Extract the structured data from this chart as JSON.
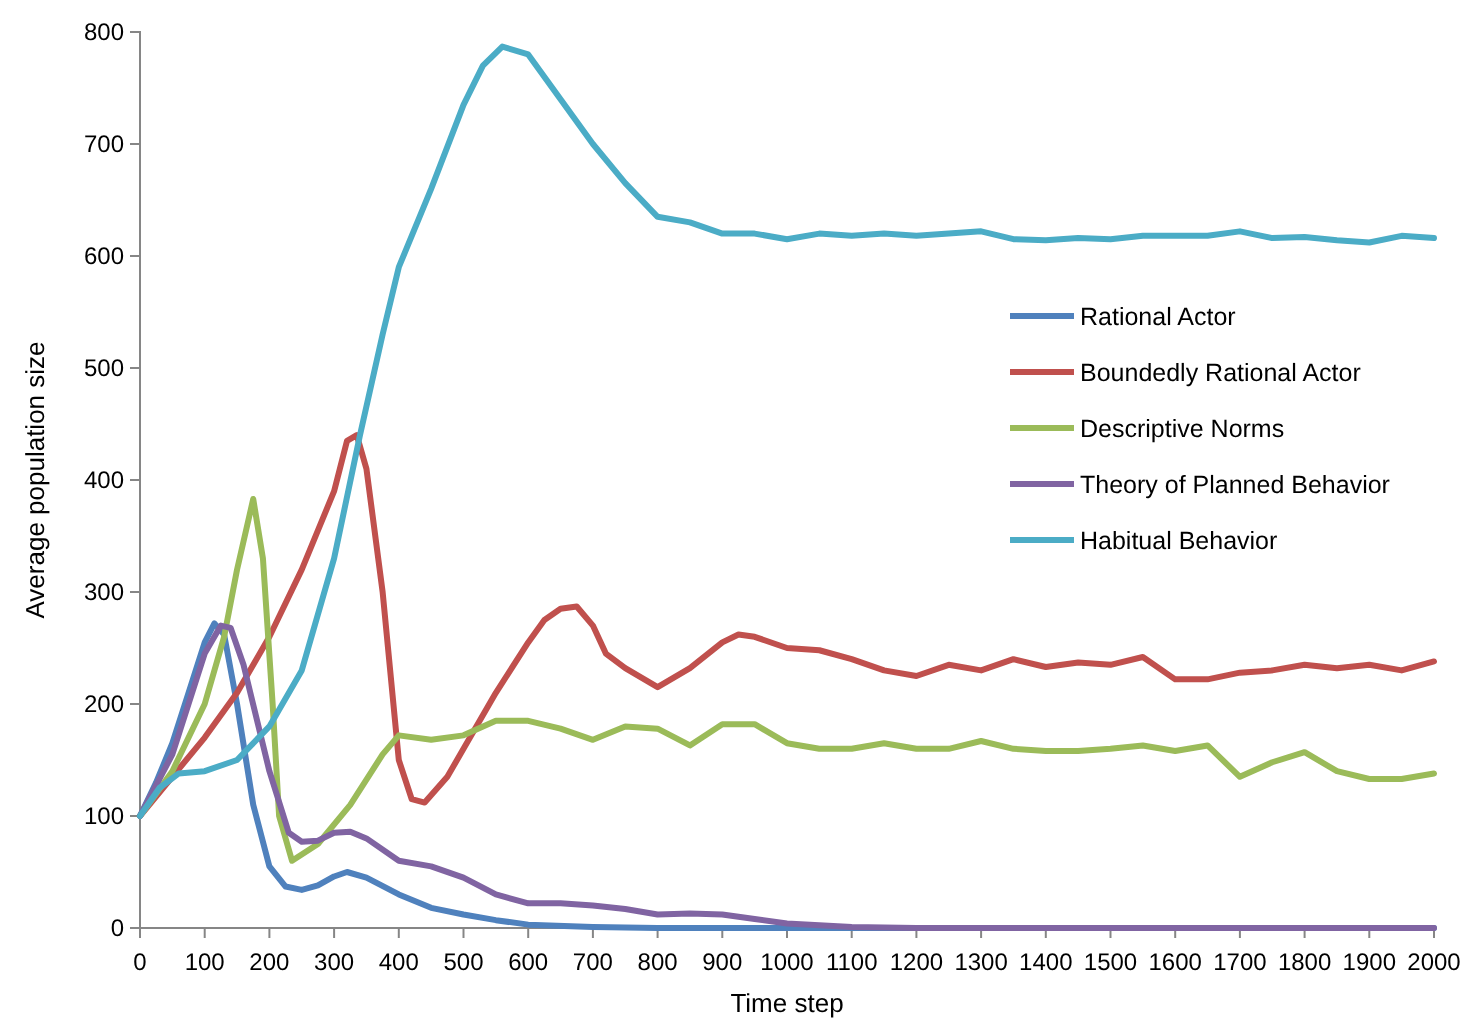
{
  "chart_data": {
    "type": "line",
    "xlabel": "Time step",
    "ylabel": "Average population size",
    "xlim": [
      0,
      2000
    ],
    "ylim": [
      0,
      800
    ],
    "xticks": [
      0,
      100,
      200,
      300,
      400,
      500,
      600,
      700,
      800,
      900,
      1000,
      1100,
      1200,
      1300,
      1400,
      1500,
      1600,
      1700,
      1800,
      1900,
      2000
    ],
    "yticks": [
      0,
      100,
      200,
      300,
      400,
      500,
      600,
      700,
      800
    ],
    "grid": false,
    "legend": "right",
    "marker": "none",
    "line_style": "solid",
    "series": [
      {
        "name": "Rational Actor",
        "color": "#4f81bd",
        "x": [
          0,
          25,
          50,
          75,
          100,
          115,
          130,
          150,
          175,
          200,
          225,
          250,
          275,
          300,
          320,
          350,
          400,
          450,
          500,
          550,
          600,
          700,
          800,
          2000
        ],
        "values": [
          100,
          130,
          165,
          210,
          255,
          272,
          262,
          200,
          110,
          55,
          37,
          34,
          38,
          46,
          50,
          45,
          30,
          18,
          12,
          7,
          3,
          1,
          0,
          0
        ]
      },
      {
        "name": "Boundedly Rational Actor",
        "color": "#c0504d",
        "x": [
          0,
          50,
          100,
          150,
          200,
          250,
          300,
          320,
          335,
          350,
          375,
          400,
          420,
          440,
          475,
          500,
          550,
          600,
          625,
          650,
          675,
          700,
          720,
          750,
          800,
          850,
          900,
          925,
          950,
          1000,
          1050,
          1100,
          1150,
          1200,
          1250,
          1300,
          1350,
          1400,
          1450,
          1500,
          1550,
          1600,
          1650,
          1700,
          1750,
          1800,
          1850,
          1900,
          1950,
          2000
        ],
        "values": [
          100,
          135,
          170,
          210,
          260,
          320,
          390,
          435,
          440,
          410,
          300,
          150,
          115,
          112,
          135,
          160,
          210,
          255,
          275,
          285,
          287,
          270,
          245,
          232,
          215,
          232,
          255,
          262,
          260,
          250,
          248,
          240,
          230,
          225,
          235,
          230,
          240,
          233,
          237,
          235,
          242,
          222,
          222,
          228,
          230,
          235,
          232,
          235,
          230,
          238
        ]
      },
      {
        "name": "Descriptive Norms",
        "color": "#9bbb59",
        "x": [
          0,
          50,
          100,
          130,
          150,
          175,
          190,
          205,
          215,
          235,
          275,
          325,
          375,
          400,
          450,
          500,
          550,
          600,
          650,
          700,
          750,
          800,
          850,
          900,
          950,
          1000,
          1050,
          1100,
          1150,
          1200,
          1250,
          1300,
          1350,
          1400,
          1450,
          1500,
          1550,
          1600,
          1650,
          1700,
          1750,
          1800,
          1850,
          1900,
          1950,
          2000
        ],
        "values": [
          100,
          140,
          200,
          260,
          320,
          383,
          330,
          200,
          100,
          60,
          75,
          110,
          155,
          172,
          168,
          172,
          185,
          185,
          178,
          168,
          180,
          178,
          163,
          182,
          182,
          165,
          160,
          160,
          165,
          160,
          160,
          167,
          160,
          158,
          158,
          160,
          163,
          158,
          163,
          135,
          148,
          157,
          140,
          133,
          133,
          138
        ]
      },
      {
        "name": "Theory of Planned Behavior",
        "color": "#8064a2",
        "x": [
          0,
          50,
          100,
          125,
          140,
          160,
          200,
          230,
          250,
          275,
          300,
          325,
          350,
          400,
          450,
          500,
          550,
          600,
          650,
          700,
          750,
          800,
          850,
          900,
          950,
          1000,
          1100,
          1200,
          2000
        ],
        "values": [
          100,
          155,
          245,
          270,
          268,
          235,
          140,
          85,
          77,
          78,
          85,
          86,
          80,
          60,
          55,
          45,
          30,
          22,
          22,
          20,
          17,
          12,
          13,
          12,
          8,
          4,
          1,
          0,
          0
        ]
      },
      {
        "name": "Habitual Behavior",
        "color": "#4bacc6",
        "x": [
          0,
          30,
          60,
          100,
          150,
          200,
          250,
          300,
          340,
          375,
          400,
          450,
          500,
          530,
          560,
          600,
          650,
          700,
          750,
          800,
          850,
          900,
          950,
          1000,
          1050,
          1100,
          1150,
          1200,
          1250,
          1300,
          1350,
          1400,
          1450,
          1500,
          1550,
          1600,
          1650,
          1700,
          1750,
          1800,
          1850,
          1900,
          1950,
          2000
        ],
        "values": [
          100,
          125,
          138,
          140,
          150,
          180,
          230,
          330,
          440,
          530,
          590,
          660,
          735,
          770,
          787,
          780,
          740,
          700,
          665,
          635,
          630,
          620,
          620,
          615,
          620,
          618,
          620,
          618,
          620,
          622,
          615,
          614,
          616,
          615,
          618,
          618,
          618,
          622,
          616,
          617,
          614,
          612,
          618,
          616
        ]
      }
    ]
  }
}
